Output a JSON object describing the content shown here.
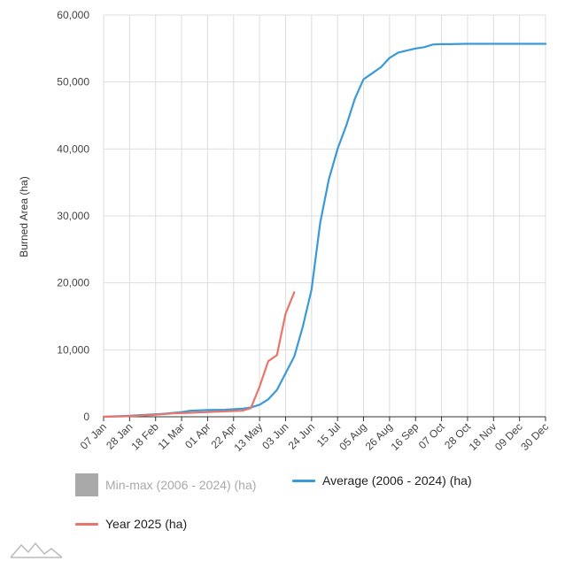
{
  "colors": {
    "average": "#3a9ad9",
    "year": "#e8756a",
    "minmax": "#a9a9a9",
    "grid": "#dddddd",
    "axis": "#333333"
  },
  "legend": {
    "minmax": "Min-max (2006 - 2024) (ha)",
    "average": "Average (2006 - 2024) (ha)",
    "year": "Year 2025 (ha)"
  },
  "chart_data": {
    "type": "line",
    "title": "",
    "xlabel": "",
    "ylabel": "Burned Area (ha)",
    "ylim": [
      0,
      60000
    ],
    "yticks": [
      0,
      10000,
      20000,
      30000,
      40000,
      50000,
      60000
    ],
    "ytick_labels": [
      "0",
      "10,000",
      "20,000",
      "30,000",
      "40,000",
      "50,000",
      "60,000"
    ],
    "x_ticks": [
      "07 Jan",
      "28 Jan",
      "18 Feb",
      "11 Mar",
      "01 Apr",
      "22 Apr",
      "13 May",
      "03 Jun",
      "24 Jun",
      "15 Jul",
      "05 Aug",
      "26 Aug",
      "16 Sep",
      "07 Oct",
      "28 Oct",
      "18 Nov",
      "09 Dec",
      "30 Dec"
    ],
    "x_unit": "weeks since 07 Jan",
    "xlim": [
      0,
      51
    ],
    "series": [
      {
        "name": "Average (2006 - 2024) (ha)",
        "color": "#3a9ad9",
        "x": [
          0,
          1,
          3,
          5,
          7,
          9,
          10,
          12,
          14,
          16,
          17,
          18,
          19,
          20,
          21,
          22,
          23,
          24,
          25,
          26,
          27,
          28,
          29,
          30,
          31,
          32,
          33,
          34,
          35,
          36,
          37,
          38,
          39,
          40,
          42,
          44,
          46,
          48,
          51
        ],
        "values": [
          0,
          50,
          150,
          300,
          450,
          700,
          900,
          1000,
          1050,
          1200,
          1400,
          1800,
          2600,
          4000,
          6500,
          9000,
          13500,
          19000,
          29000,
          35500,
          40000,
          43500,
          47500,
          50400,
          51300,
          52200,
          53600,
          54400,
          54700,
          55000,
          55200,
          55600,
          55650,
          55650,
          55700,
          55700,
          55700,
          55700,
          55700
        ]
      },
      {
        "name": "Year 2025 (ha)",
        "color": "#e8756a",
        "x": [
          0,
          2,
          4,
          6,
          8,
          10,
          12,
          14,
          16,
          17,
          18,
          19,
          20,
          21,
          22
        ],
        "values": [
          0,
          50,
          150,
          300,
          500,
          600,
          700,
          800,
          900,
          1300,
          4500,
          8300,
          9200,
          15400,
          18600
        ]
      }
    ]
  }
}
